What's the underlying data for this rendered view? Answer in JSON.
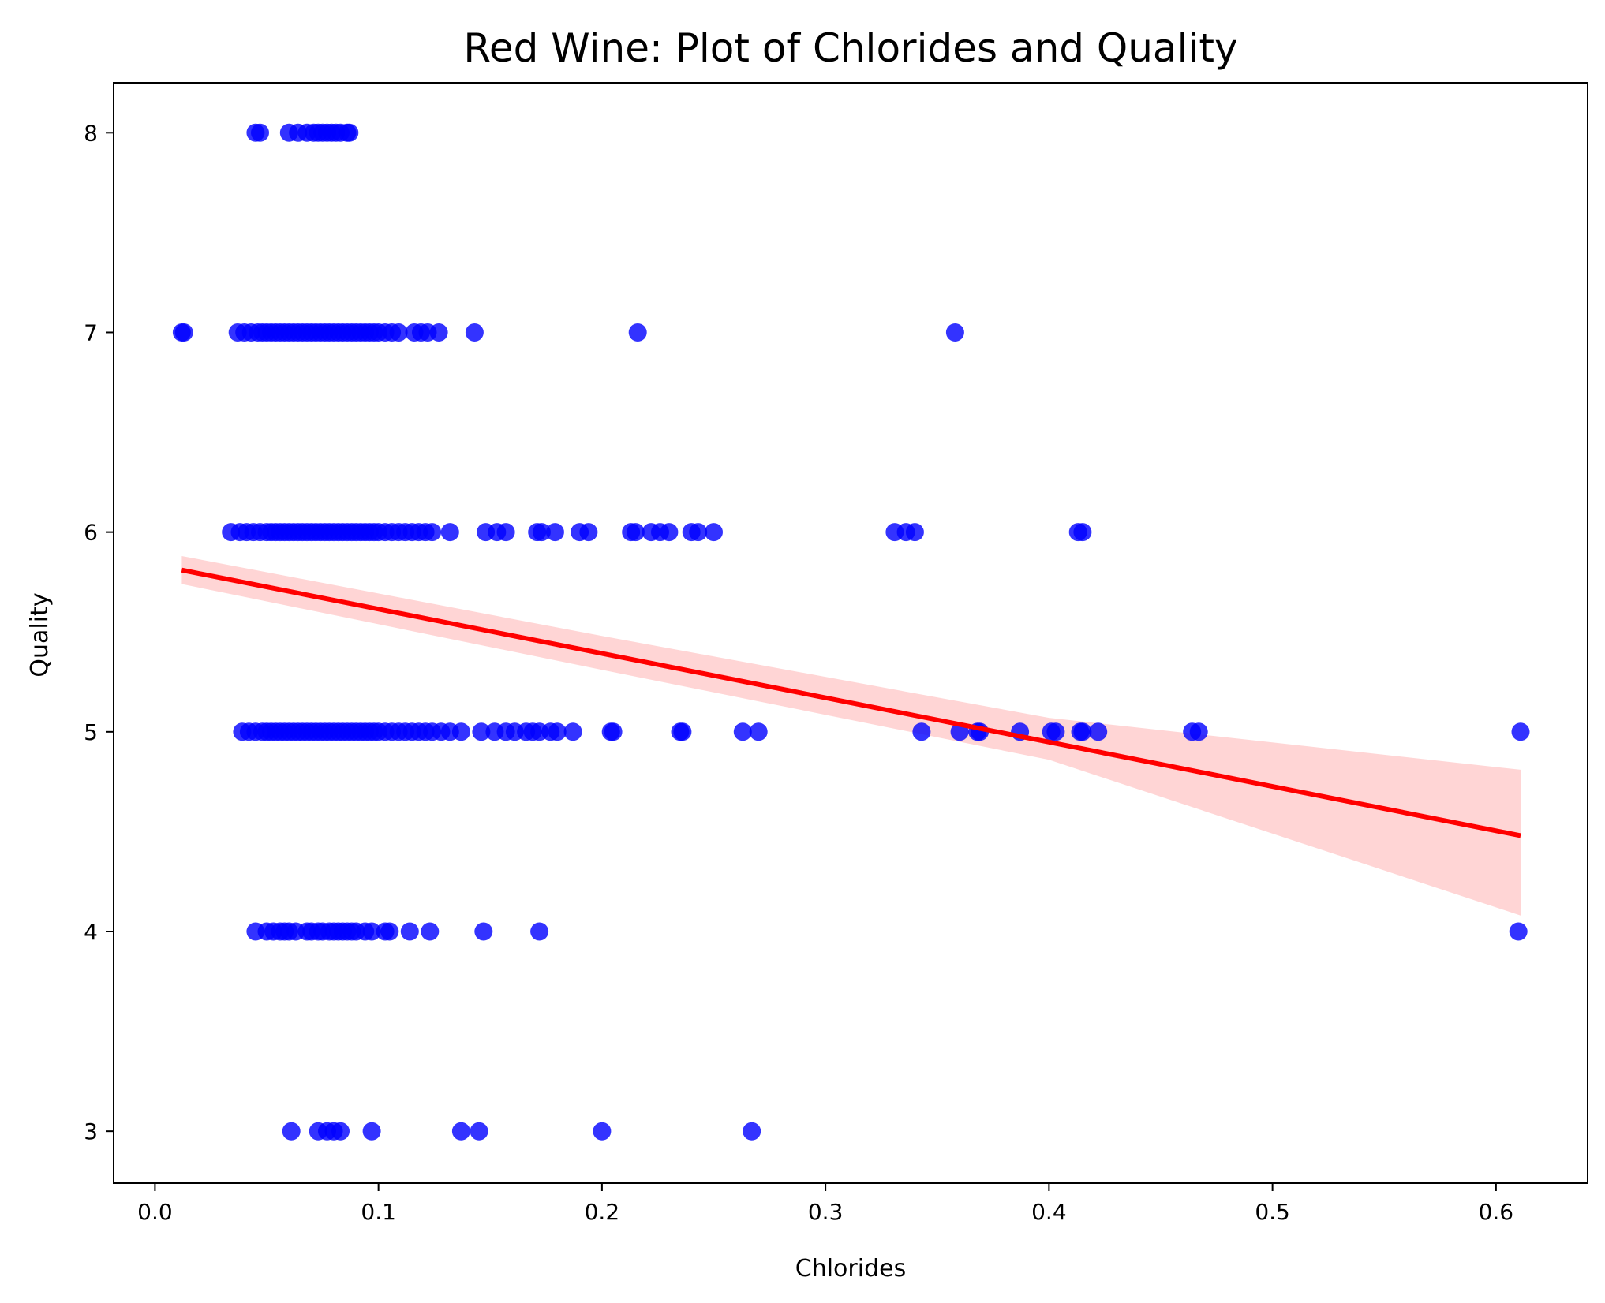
{
  "chart_data": {
    "type": "scatter",
    "title": "Red Wine: Plot of Chlorides and Quality",
    "xlabel": "Chlorides",
    "ylabel": "Quality",
    "xlim": [
      -0.0185,
      0.641
    ],
    "ylim": [
      2.74,
      8.25
    ],
    "xticks": [
      0.0,
      0.1,
      0.2,
      0.3,
      0.4,
      0.5,
      0.6
    ],
    "xtick_labels": [
      "0.0",
      "0.1",
      "0.2",
      "0.3",
      "0.4",
      "0.5",
      "0.6"
    ],
    "yticks": [
      3,
      4,
      5,
      6,
      7,
      8
    ],
    "ytick_labels": [
      "3",
      "4",
      "5",
      "6",
      "7",
      "8"
    ],
    "grid": false,
    "colors": {
      "points": "#0000ff",
      "line": "#ff0000",
      "band": "#ffb3b3"
    },
    "series": [
      {
        "kind": "points",
        "points": [
          [
            0.045,
            8
          ],
          [
            0.047,
            8
          ],
          [
            0.06,
            8
          ],
          [
            0.064,
            8
          ],
          [
            0.068,
            8
          ],
          [
            0.071,
            8
          ],
          [
            0.073,
            8
          ],
          [
            0.075,
            8
          ],
          [
            0.077,
            8
          ],
          [
            0.079,
            8
          ],
          [
            0.081,
            8
          ],
          [
            0.083,
            8
          ],
          [
            0.086,
            8
          ],
          [
            0.087,
            8
          ],
          [
            0.012,
            7
          ],
          [
            0.013,
            7
          ],
          [
            0.037,
            7
          ],
          [
            0.04,
            7
          ],
          [
            0.043,
            7
          ],
          [
            0.046,
            7
          ],
          [
            0.048,
            7
          ],
          [
            0.05,
            7
          ],
          [
            0.052,
            7
          ],
          [
            0.054,
            7
          ],
          [
            0.056,
            7
          ],
          [
            0.058,
            7
          ],
          [
            0.06,
            7
          ],
          [
            0.062,
            7
          ],
          [
            0.064,
            7
          ],
          [
            0.066,
            7
          ],
          [
            0.068,
            7
          ],
          [
            0.07,
            7
          ],
          [
            0.072,
            7
          ],
          [
            0.074,
            7
          ],
          [
            0.076,
            7
          ],
          [
            0.078,
            7
          ],
          [
            0.08,
            7
          ],
          [
            0.082,
            7
          ],
          [
            0.084,
            7
          ],
          [
            0.086,
            7
          ],
          [
            0.088,
            7
          ],
          [
            0.09,
            7
          ],
          [
            0.092,
            7
          ],
          [
            0.094,
            7
          ],
          [
            0.096,
            7
          ],
          [
            0.098,
            7
          ],
          [
            0.1,
            7
          ],
          [
            0.103,
            7
          ],
          [
            0.106,
            7
          ],
          [
            0.109,
            7
          ],
          [
            0.116,
            7
          ],
          [
            0.119,
            7
          ],
          [
            0.122,
            7
          ],
          [
            0.127,
            7
          ],
          [
            0.143,
            7
          ],
          [
            0.216,
            7
          ],
          [
            0.358,
            7
          ],
          [
            0.034,
            6
          ],
          [
            0.038,
            6
          ],
          [
            0.041,
            6
          ],
          [
            0.044,
            6
          ],
          [
            0.047,
            6
          ],
          [
            0.05,
            6
          ],
          [
            0.052,
            6
          ],
          [
            0.054,
            6
          ],
          [
            0.056,
            6
          ],
          [
            0.058,
            6
          ],
          [
            0.06,
            6
          ],
          [
            0.062,
            6
          ],
          [
            0.064,
            6
          ],
          [
            0.066,
            6
          ],
          [
            0.068,
            6
          ],
          [
            0.07,
            6
          ],
          [
            0.072,
            6
          ],
          [
            0.074,
            6
          ],
          [
            0.076,
            6
          ],
          [
            0.078,
            6
          ],
          [
            0.08,
            6
          ],
          [
            0.082,
            6
          ],
          [
            0.084,
            6
          ],
          [
            0.086,
            6
          ],
          [
            0.088,
            6
          ],
          [
            0.09,
            6
          ],
          [
            0.092,
            6
          ],
          [
            0.094,
            6
          ],
          [
            0.096,
            6
          ],
          [
            0.098,
            6
          ],
          [
            0.1,
            6
          ],
          [
            0.103,
            6
          ],
          [
            0.106,
            6
          ],
          [
            0.109,
            6
          ],
          [
            0.112,
            6
          ],
          [
            0.115,
            6
          ],
          [
            0.118,
            6
          ],
          [
            0.121,
            6
          ],
          [
            0.124,
            6
          ],
          [
            0.132,
            6
          ],
          [
            0.148,
            6
          ],
          [
            0.153,
            6
          ],
          [
            0.157,
            6
          ],
          [
            0.171,
            6
          ],
          [
            0.173,
            6
          ],
          [
            0.179,
            6
          ],
          [
            0.19,
            6
          ],
          [
            0.194,
            6
          ],
          [
            0.213,
            6
          ],
          [
            0.215,
            6
          ],
          [
            0.222,
            6
          ],
          [
            0.226,
            6
          ],
          [
            0.23,
            6
          ],
          [
            0.24,
            6
          ],
          [
            0.243,
            6
          ],
          [
            0.25,
            6
          ],
          [
            0.331,
            6
          ],
          [
            0.336,
            6
          ],
          [
            0.34,
            6
          ],
          [
            0.413,
            6
          ],
          [
            0.415,
            6
          ],
          [
            0.039,
            5
          ],
          [
            0.042,
            5
          ],
          [
            0.045,
            5
          ],
          [
            0.048,
            5
          ],
          [
            0.05,
            5
          ],
          [
            0.052,
            5
          ],
          [
            0.054,
            5
          ],
          [
            0.056,
            5
          ],
          [
            0.058,
            5
          ],
          [
            0.06,
            5
          ],
          [
            0.062,
            5
          ],
          [
            0.064,
            5
          ],
          [
            0.066,
            5
          ],
          [
            0.068,
            5
          ],
          [
            0.07,
            5
          ],
          [
            0.072,
            5
          ],
          [
            0.074,
            5
          ],
          [
            0.076,
            5
          ],
          [
            0.078,
            5
          ],
          [
            0.08,
            5
          ],
          [
            0.082,
            5
          ],
          [
            0.084,
            5
          ],
          [
            0.086,
            5
          ],
          [
            0.088,
            5
          ],
          [
            0.09,
            5
          ],
          [
            0.092,
            5
          ],
          [
            0.094,
            5
          ],
          [
            0.096,
            5
          ],
          [
            0.098,
            5
          ],
          [
            0.1,
            5
          ],
          [
            0.103,
            5
          ],
          [
            0.106,
            5
          ],
          [
            0.109,
            5
          ],
          [
            0.112,
            5
          ],
          [
            0.115,
            5
          ],
          [
            0.118,
            5
          ],
          [
            0.121,
            5
          ],
          [
            0.124,
            5
          ],
          [
            0.128,
            5
          ],
          [
            0.132,
            5
          ],
          [
            0.137,
            5
          ],
          [
            0.146,
            5
          ],
          [
            0.152,
            5
          ],
          [
            0.157,
            5
          ],
          [
            0.161,
            5
          ],
          [
            0.166,
            5
          ],
          [
            0.169,
            5
          ],
          [
            0.172,
            5
          ],
          [
            0.177,
            5
          ],
          [
            0.18,
            5
          ],
          [
            0.187,
            5
          ],
          [
            0.204,
            5
          ],
          [
            0.205,
            5
          ],
          [
            0.235,
            5
          ],
          [
            0.236,
            5
          ],
          [
            0.263,
            5
          ],
          [
            0.27,
            5
          ],
          [
            0.343,
            5
          ],
          [
            0.36,
            5
          ],
          [
            0.368,
            5
          ],
          [
            0.369,
            5
          ],
          [
            0.387,
            5
          ],
          [
            0.401,
            5
          ],
          [
            0.403,
            5
          ],
          [
            0.414,
            5
          ],
          [
            0.415,
            5
          ],
          [
            0.422,
            5
          ],
          [
            0.464,
            5
          ],
          [
            0.467,
            5
          ],
          [
            0.611,
            5
          ],
          [
            0.045,
            4
          ],
          [
            0.05,
            4
          ],
          [
            0.053,
            4
          ],
          [
            0.056,
            4
          ],
          [
            0.058,
            4
          ],
          [
            0.06,
            4
          ],
          [
            0.063,
            4
          ],
          [
            0.068,
            4
          ],
          [
            0.07,
            4
          ],
          [
            0.073,
            4
          ],
          [
            0.075,
            4
          ],
          [
            0.078,
            4
          ],
          [
            0.08,
            4
          ],
          [
            0.082,
            4
          ],
          [
            0.084,
            4
          ],
          [
            0.086,
            4
          ],
          [
            0.088,
            4
          ],
          [
            0.09,
            4
          ],
          [
            0.094,
            4
          ],
          [
            0.097,
            4
          ],
          [
            0.103,
            4
          ],
          [
            0.105,
            4
          ],
          [
            0.114,
            4
          ],
          [
            0.123,
            4
          ],
          [
            0.147,
            4
          ],
          [
            0.172,
            4
          ],
          [
            0.61,
            4
          ],
          [
            0.061,
            3
          ],
          [
            0.073,
            3
          ],
          [
            0.077,
            3
          ],
          [
            0.08,
            3
          ],
          [
            0.083,
            3
          ],
          [
            0.097,
            3
          ],
          [
            0.137,
            3
          ],
          [
            0.145,
            3
          ],
          [
            0.2,
            3
          ],
          [
            0.267,
            3
          ]
        ]
      },
      {
        "kind": "regression-line",
        "points": [
          [
            0.012,
            5.81
          ],
          [
            0.611,
            4.48
          ]
        ]
      },
      {
        "kind": "confidence-band",
        "upper": [
          [
            0.012,
            5.88
          ],
          [
            0.2,
            5.48
          ],
          [
            0.4,
            5.07
          ],
          [
            0.611,
            4.81
          ]
        ],
        "lower": [
          [
            0.012,
            5.74
          ],
          [
            0.2,
            5.31
          ],
          [
            0.4,
            4.86
          ],
          [
            0.611,
            4.08
          ]
        ]
      }
    ]
  }
}
